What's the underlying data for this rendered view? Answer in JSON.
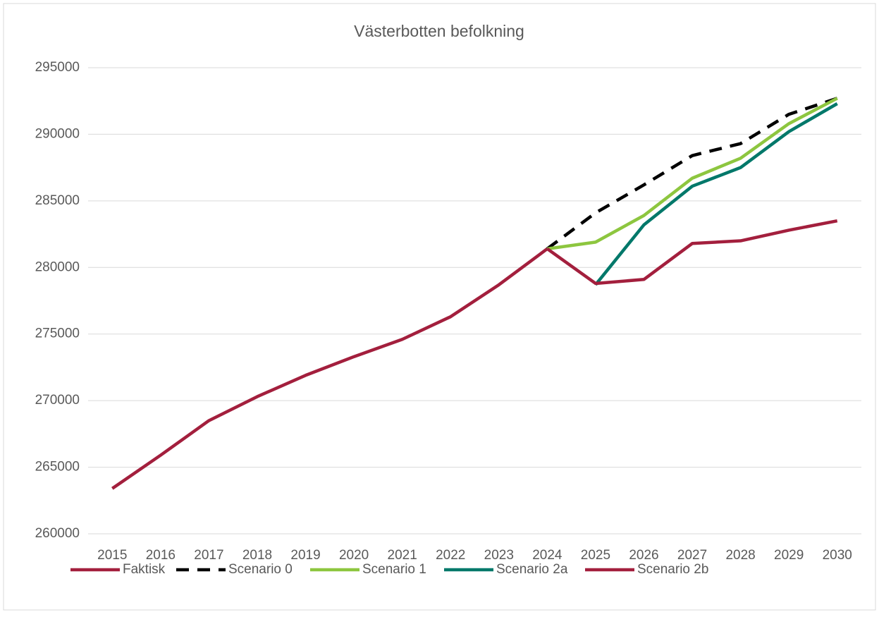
{
  "chart_data": {
    "type": "line",
    "title": "Västerbotten befolkning",
    "categories": [
      "2015",
      "2016",
      "2017",
      "2018",
      "2019",
      "2020",
      "2021",
      "2022",
      "2023",
      "2024",
      "2025",
      "2026",
      "2027",
      "2028",
      "2029",
      "2030"
    ],
    "series": [
      {
        "name": "Faktisk",
        "color": "#a31f3d",
        "dashed": false,
        "values": [
          263400,
          265900,
          268500,
          270300,
          271900,
          273300,
          274600,
          276300,
          278700,
          281400,
          null,
          null,
          null,
          null,
          null,
          null
        ]
      },
      {
        "name": "Scenario 0",
        "color": "#000000",
        "dashed": true,
        "values": [
          null,
          null,
          null,
          null,
          null,
          null,
          null,
          null,
          null,
          281400,
          284100,
          286200,
          288400,
          289300,
          291500,
          292700
        ]
      },
      {
        "name": "Scenario 1",
        "color": "#8dc63f",
        "dashed": false,
        "values": [
          null,
          null,
          null,
          null,
          null,
          null,
          null,
          null,
          null,
          281400,
          281900,
          283900,
          286700,
          288200,
          290800,
          292700
        ]
      },
      {
        "name": "Scenario 2a",
        "color": "#00786a",
        "dashed": false,
        "values": [
          null,
          null,
          null,
          null,
          null,
          null,
          null,
          null,
          null,
          null,
          278700,
          283200,
          286100,
          287500,
          290200,
          292300
        ]
      },
      {
        "name": "Scenario 2b",
        "color": "#a31f3d",
        "dashed": false,
        "values": [
          null,
          null,
          null,
          null,
          null,
          null,
          null,
          null,
          null,
          281400,
          278800,
          279100,
          281800,
          282000,
          282800,
          283500
        ]
      }
    ],
    "ylim": [
      260000,
      295000
    ],
    "yticks": [
      260000,
      265000,
      270000,
      275000,
      280000,
      285000,
      290000,
      295000
    ],
    "grid": true,
    "legend": "bottom"
  }
}
